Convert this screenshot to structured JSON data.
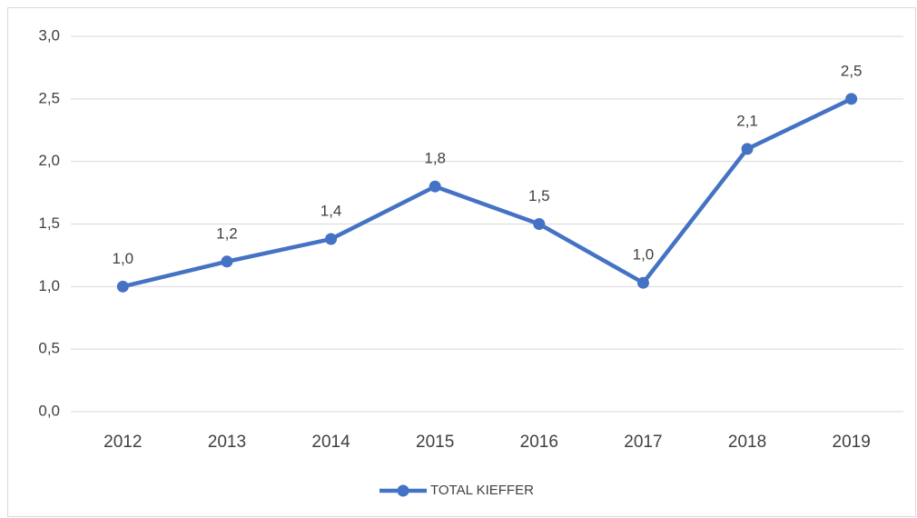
{
  "chart_data": {
    "type": "line",
    "categories": [
      "2012",
      "2013",
      "2014",
      "2015",
      "2016",
      "2017",
      "2018",
      "2019"
    ],
    "series": [
      {
        "name": "TOTAL KIEFFER",
        "color": "#4472c4",
        "values": [
          1.0,
          1.2,
          1.38,
          1.8,
          1.5,
          1.03,
          2.1,
          2.5
        ],
        "value_labels": [
          "1,0",
          "1,2",
          "1,4",
          "1,8",
          "1,5",
          "1,0",
          "2,1",
          "2,5"
        ]
      }
    ],
    "ylim": [
      0,
      3
    ],
    "yticks": [
      {
        "value": 0,
        "label": "0,0"
      },
      {
        "value": 0.5,
        "label": "0,5"
      },
      {
        "value": 1,
        "label": "1,0"
      },
      {
        "value": 1.5,
        "label": "1,5"
      },
      {
        "value": 2,
        "label": "2,0"
      },
      {
        "value": 2.5,
        "label": "2,5"
      },
      {
        "value": 3,
        "label": "3,0"
      }
    ],
    "grid": true,
    "legend": "bottom"
  }
}
